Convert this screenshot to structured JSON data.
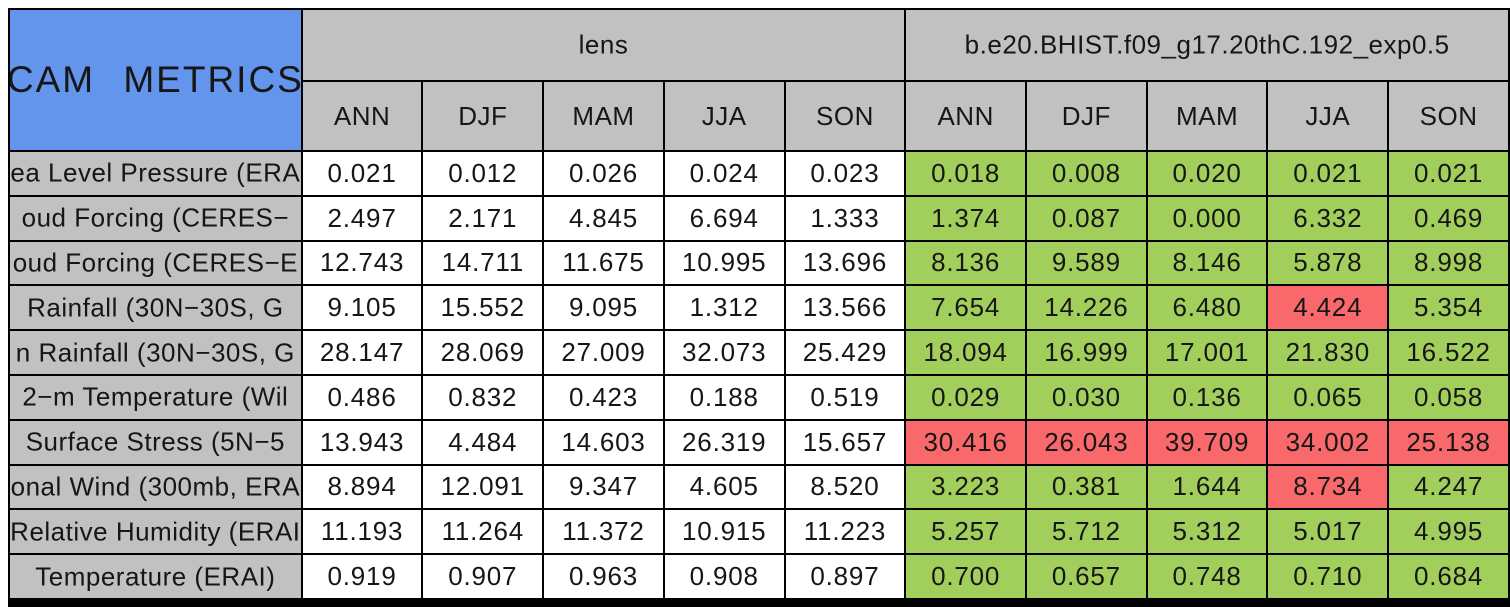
{
  "colors": {
    "corner_bg": "#6495ed",
    "header_bg": "#c1c1c1",
    "good": "#a2ce5c",
    "bad": "#f9696c",
    "border": "#000000",
    "lens_cell_bg": "#ffffff"
  },
  "table": {
    "corner_title": "CAM METRICS",
    "groups": [
      {
        "label": "lens"
      },
      {
        "label": "b.e20.BHIST.f09_g17.20thC.192_exp0.5"
      }
    ],
    "season_columns": [
      "ANN",
      "DJF",
      "MAM",
      "JJA",
      "SON"
    ],
    "rows": [
      {
        "label": "ea Level Pressure (ERA",
        "lens": [
          "0.021",
          "0.012",
          "0.026",
          "0.024",
          "0.023"
        ],
        "exp_values": [
          "0.018",
          "0.008",
          "0.020",
          "0.021",
          "0.021"
        ],
        "exp_status": [
          "good",
          "good",
          "good",
          "good",
          "good"
        ]
      },
      {
        "label": "oud Forcing (CERES−",
        "lens": [
          "2.497",
          "2.171",
          "4.845",
          "6.694",
          "1.333"
        ],
        "exp_values": [
          "1.374",
          "0.087",
          "0.000",
          "6.332",
          "0.469"
        ],
        "exp_status": [
          "good",
          "good",
          "good",
          "good",
          "good"
        ]
      },
      {
        "label": "oud Forcing (CERES−E",
        "lens": [
          "12.743",
          "14.711",
          "11.675",
          "10.995",
          "13.696"
        ],
        "exp_values": [
          "8.136",
          "9.589",
          "8.146",
          "5.878",
          "8.998"
        ],
        "exp_status": [
          "good",
          "good",
          "good",
          "good",
          "good"
        ]
      },
      {
        "label": "Rainfall (30N−30S, G",
        "lens": [
          "9.105",
          "15.552",
          "9.095",
          "1.312",
          "13.566"
        ],
        "exp_values": [
          "7.654",
          "14.226",
          "6.480",
          "4.424",
          "5.354"
        ],
        "exp_status": [
          "good",
          "good",
          "good",
          "bad",
          "good"
        ]
      },
      {
        "label": "n Rainfall (30N−30S, G",
        "lens": [
          "28.147",
          "28.069",
          "27.009",
          "32.073",
          "25.429"
        ],
        "exp_values": [
          "18.094",
          "16.999",
          "17.001",
          "21.830",
          "16.522"
        ],
        "exp_status": [
          "good",
          "good",
          "good",
          "good",
          "good"
        ]
      },
      {
        "label": "2−m Temperature (Wil",
        "lens": [
          "0.486",
          "0.832",
          "0.423",
          "0.188",
          "0.519"
        ],
        "exp_values": [
          "0.029",
          "0.030",
          "0.136",
          "0.065",
          "0.058"
        ],
        "exp_status": [
          "good",
          "good",
          "good",
          "good",
          "good"
        ]
      },
      {
        "label": "Surface Stress (5N−5",
        "lens": [
          "13.943",
          "4.484",
          "14.603",
          "26.319",
          "15.657"
        ],
        "exp_values": [
          "30.416",
          "26.043",
          "39.709",
          "34.002",
          "25.138"
        ],
        "exp_status": [
          "bad",
          "bad",
          "bad",
          "bad",
          "bad"
        ]
      },
      {
        "label": "onal Wind (300mb, ERA",
        "lens": [
          "8.894",
          "12.091",
          "9.347",
          "4.605",
          "8.520"
        ],
        "exp_values": [
          "3.223",
          "0.381",
          "1.644",
          "8.734",
          "4.247"
        ],
        "exp_status": [
          "good",
          "good",
          "good",
          "bad",
          "good"
        ]
      },
      {
        "label": "Relative Humidity (ERAI",
        "lens": [
          "11.193",
          "11.264",
          "11.372",
          "10.915",
          "11.223"
        ],
        "exp_values": [
          "5.257",
          "5.712",
          "5.312",
          "5.017",
          "4.995"
        ],
        "exp_status": [
          "good",
          "good",
          "good",
          "good",
          "good"
        ]
      },
      {
        "label": "Temperature (ERAI)",
        "lens": [
          "0.919",
          "0.907",
          "0.963",
          "0.908",
          "0.897"
        ],
        "exp_values": [
          "0.700",
          "0.657",
          "0.748",
          "0.710",
          "0.684"
        ],
        "exp_status": [
          "good",
          "good",
          "good",
          "good",
          "good"
        ]
      }
    ]
  },
  "chart_data": {
    "type": "table",
    "title": "CAM METRICS",
    "column_groups": [
      "lens",
      "b.e20.BHIST.f09_g17.20thC.192_exp0.5"
    ],
    "columns": [
      "ANN",
      "DJF",
      "MAM",
      "JJA",
      "SON"
    ],
    "rows": [
      {
        "label": "ea Level Pressure (ERA",
        "lens": [
          0.021,
          0.012,
          0.026,
          0.024,
          0.023
        ],
        "experiment": [
          0.018,
          0.008,
          0.02,
          0.021,
          0.021
        ],
        "experiment_cell_color": [
          "green",
          "green",
          "green",
          "green",
          "green"
        ]
      },
      {
        "label": "oud Forcing (CERES−",
        "lens": [
          2.497,
          2.171,
          4.845,
          6.694,
          1.333
        ],
        "experiment": [
          1.374,
          0.087,
          0.0,
          6.332,
          0.469
        ],
        "experiment_cell_color": [
          "green",
          "green",
          "green",
          "green",
          "green"
        ]
      },
      {
        "label": "oud Forcing (CERES−E",
        "lens": [
          12.743,
          14.711,
          11.675,
          10.995,
          13.696
        ],
        "experiment": [
          8.136,
          9.589,
          8.146,
          5.878,
          8.998
        ],
        "experiment_cell_color": [
          "green",
          "green",
          "green",
          "green",
          "green"
        ]
      },
      {
        "label": "Rainfall (30N−30S, G",
        "lens": [
          9.105,
          15.552,
          9.095,
          1.312,
          13.566
        ],
        "experiment": [
          7.654,
          14.226,
          6.48,
          4.424,
          5.354
        ],
        "experiment_cell_color": [
          "green",
          "green",
          "green",
          "red",
          "green"
        ]
      },
      {
        "label": "n Rainfall (30N−30S, G",
        "lens": [
          28.147,
          28.069,
          27.009,
          32.073,
          25.429
        ],
        "experiment": [
          18.094,
          16.999,
          17.001,
          21.83,
          16.522
        ],
        "experiment_cell_color": [
          "green",
          "green",
          "green",
          "green",
          "green"
        ]
      },
      {
        "label": "2−m Temperature (Wil",
        "lens": [
          0.486,
          0.832,
          0.423,
          0.188,
          0.519
        ],
        "experiment": [
          0.029,
          0.03,
          0.136,
          0.065,
          0.058
        ],
        "experiment_cell_color": [
          "green",
          "green",
          "green",
          "green",
          "green"
        ]
      },
      {
        "label": "Surface Stress (5N−5",
        "lens": [
          13.943,
          4.484,
          14.603,
          26.319,
          15.657
        ],
        "experiment": [
          30.416,
          26.043,
          39.709,
          34.002,
          25.138
        ],
        "experiment_cell_color": [
          "red",
          "red",
          "red",
          "red",
          "red"
        ]
      },
      {
        "label": "onal Wind (300mb, ERA",
        "lens": [
          8.894,
          12.091,
          9.347,
          4.605,
          8.52
        ],
        "experiment": [
          3.223,
          0.381,
          1.644,
          8.734,
          4.247
        ],
        "experiment_cell_color": [
          "green",
          "green",
          "green",
          "red",
          "green"
        ]
      },
      {
        "label": "Relative Humidity (ERAI",
        "lens": [
          11.193,
          11.264,
          11.372,
          10.915,
          11.223
        ],
        "experiment": [
          5.257,
          5.712,
          5.312,
          5.017,
          4.995
        ],
        "experiment_cell_color": [
          "green",
          "green",
          "green",
          "green",
          "green"
        ]
      },
      {
        "label": "Temperature (ERAI)",
        "lens": [
          0.919,
          0.907,
          0.963,
          0.908,
          0.897
        ],
        "experiment": [
          0.7,
          0.657,
          0.748,
          0.71,
          0.684
        ],
        "experiment_cell_color": [
          "green",
          "green",
          "green",
          "green",
          "green"
        ]
      }
    ]
  }
}
